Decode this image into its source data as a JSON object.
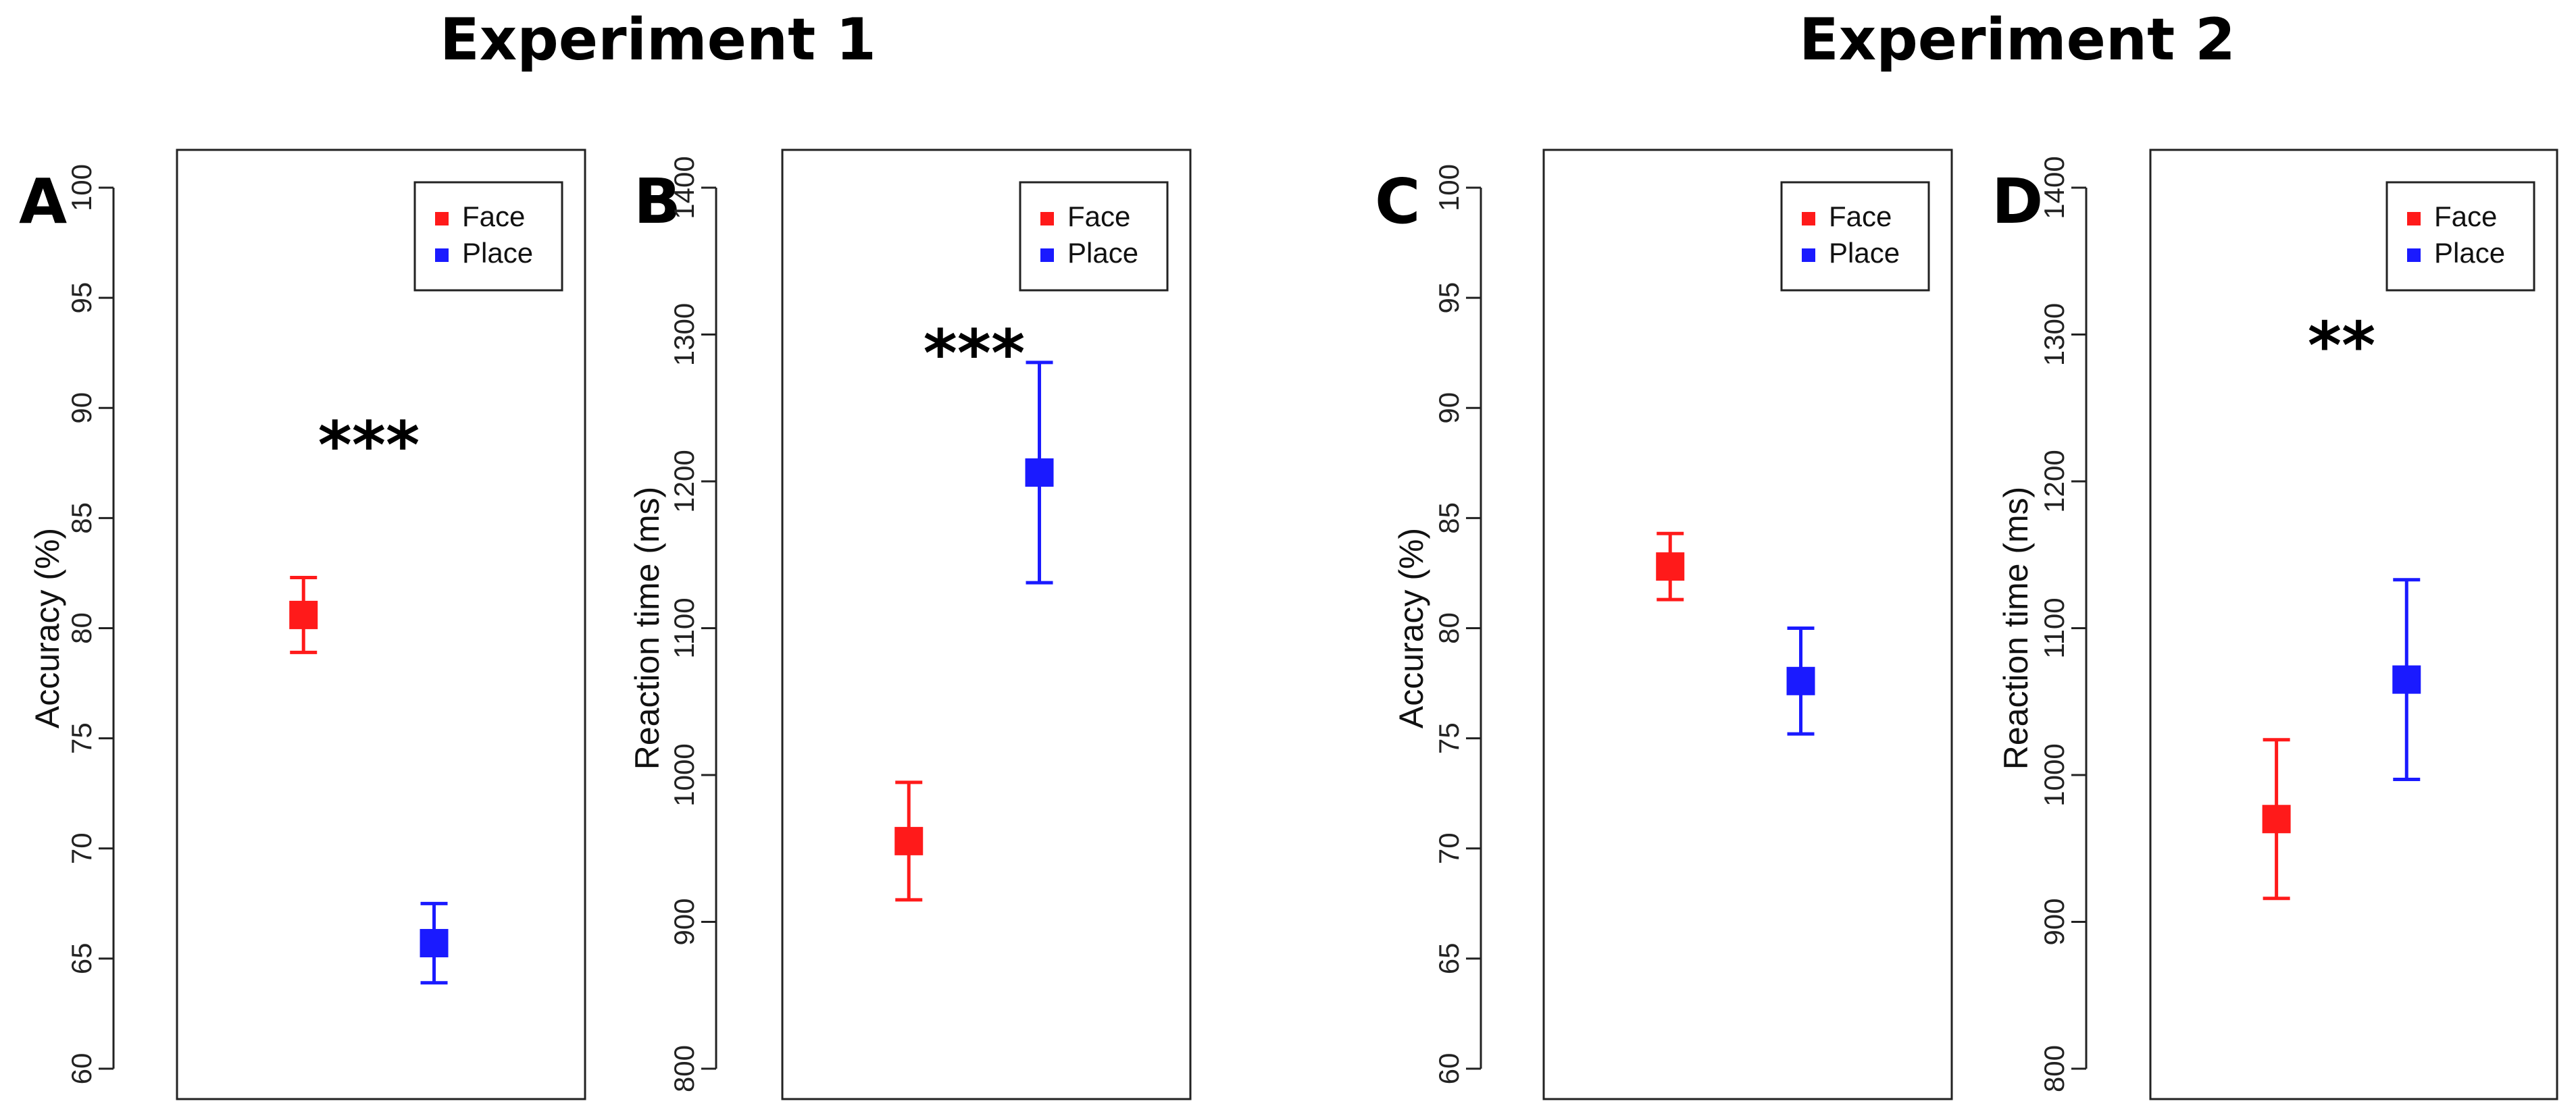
{
  "experiments": [
    {
      "title": "Experiment 1"
    },
    {
      "title": "Experiment 2"
    }
  ],
  "colors": {
    "Face": "#ff1a1a",
    "Place": "#1a1aff"
  },
  "chart_data": [
    {
      "panel": "A",
      "type": "scatter",
      "ylabel": "Accuracy (%)",
      "ylim": [
        60,
        100
      ],
      "yticks": [
        60,
        65,
        70,
        75,
        80,
        85,
        90,
        95,
        100
      ],
      "legend": [
        "Face",
        "Place"
      ],
      "legend_position": "top-right",
      "significance": "***",
      "series": [
        {
          "name": "Face",
          "x": 1,
          "y": 80.6,
          "err_low": 78.9,
          "err_high": 82.3
        },
        {
          "name": "Place",
          "x": 2,
          "y": 65.7,
          "err_low": 63.9,
          "err_high": 67.5
        }
      ]
    },
    {
      "panel": "B",
      "type": "scatter",
      "ylabel": "Reaction time (ms)",
      "ylim": [
        800,
        1400
      ],
      "yticks": [
        800,
        900,
        1000,
        1100,
        1200,
        1300,
        1400
      ],
      "legend": [
        "Face",
        "Place"
      ],
      "legend_position": "top-right",
      "significance": "***",
      "series": [
        {
          "name": "Face",
          "x": 1,
          "y": 955,
          "err_low": 915,
          "err_high": 995
        },
        {
          "name": "Place",
          "x": 2,
          "y": 1206,
          "err_low": 1131,
          "err_high": 1281
        }
      ]
    },
    {
      "panel": "C",
      "type": "scatter",
      "ylabel": "Accuracy (%)",
      "ylim": [
        60,
        100
      ],
      "yticks": [
        60,
        65,
        70,
        75,
        80,
        85,
        90,
        95,
        100
      ],
      "legend": [
        "Face",
        "Place"
      ],
      "legend_position": "top-right",
      "significance": "",
      "series": [
        {
          "name": "Face",
          "x": 1,
          "y": 82.8,
          "err_low": 81.3,
          "err_high": 84.3
        },
        {
          "name": "Place",
          "x": 2,
          "y": 77.6,
          "err_low": 75.2,
          "err_high": 80.0
        }
      ]
    },
    {
      "panel": "D",
      "type": "scatter",
      "ylabel": "Reaction time (ms)",
      "ylim": [
        800,
        1400
      ],
      "yticks": [
        800,
        900,
        1000,
        1100,
        1200,
        1300,
        1400
      ],
      "legend": [
        "Face",
        "Place"
      ],
      "legend_position": "top-right",
      "significance": "**",
      "series": [
        {
          "name": "Face",
          "x": 1,
          "y": 970,
          "err_low": 916,
          "err_high": 1024
        },
        {
          "name": "Place",
          "x": 2,
          "y": 1065,
          "err_low": 997,
          "err_high": 1133
        }
      ]
    }
  ]
}
